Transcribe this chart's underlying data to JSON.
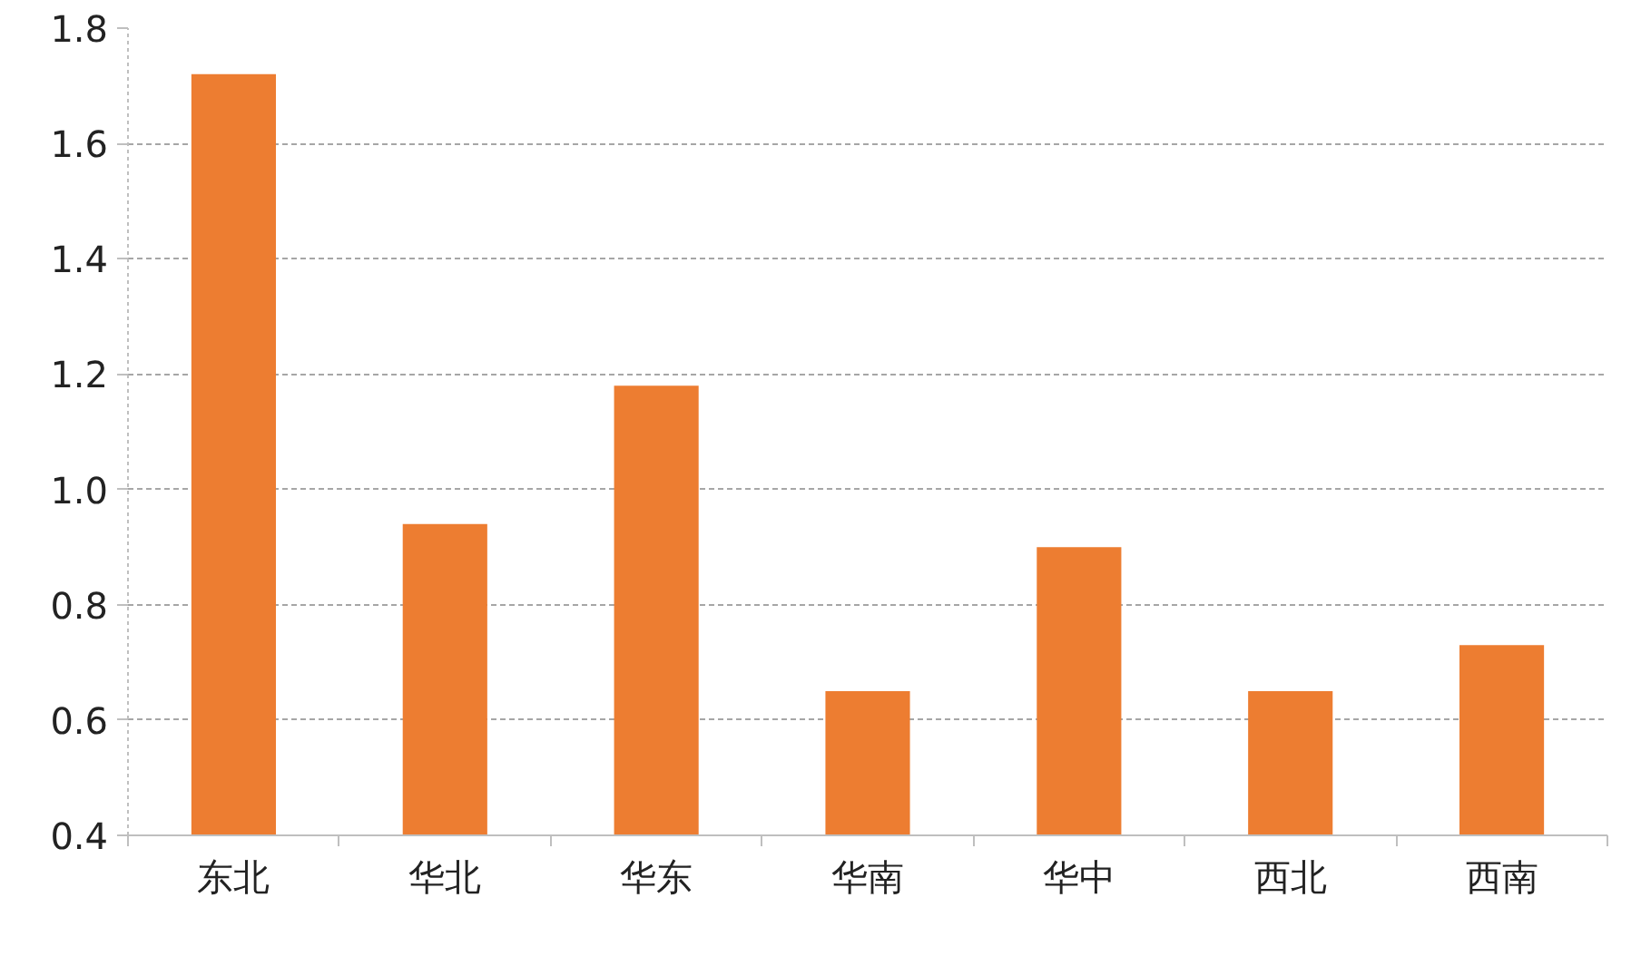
{
  "chart_data": {
    "type": "bar",
    "categories": [
      "东北",
      "华北",
      "华东",
      "华南",
      "华中",
      "西北",
      "西南"
    ],
    "values": [
      1.72,
      0.94,
      1.18,
      0.65,
      0.9,
      0.65,
      0.73
    ],
    "color": "#ed7d31",
    "ylim": [
      0.4,
      1.8
    ],
    "yticks": [
      0.4,
      0.6,
      0.8,
      {
        "value": 1.0,
        "label": "1.0"
      },
      1.2,
      1.4,
      1.6,
      1.8
    ],
    "grid": "y"
  }
}
